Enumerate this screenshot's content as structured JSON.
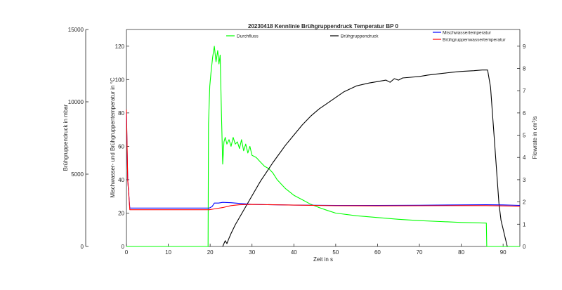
{
  "chart_data": {
    "type": "line",
    "title": "20230418 Kennlinie Brühgruppendruck Temperatur BP 0",
    "xlabel": "Zeit in s",
    "x_ticks": [
      0,
      10,
      20,
      30,
      40,
      50,
      60,
      70,
      80,
      90
    ],
    "xlim": [
      0,
      94
    ],
    "axes": {
      "pressure": {
        "label": "Brühgruppendruck in mbar",
        "ticks": [
          0,
          5000,
          10000,
          15000
        ],
        "ylim": [
          0,
          15000
        ]
      },
      "temperature": {
        "label": "Mischwasser- und Brühgruppentemperatur in °C",
        "ticks": [
          0,
          20,
          40,
          60,
          80,
          100,
          120
        ],
        "ylim": [
          0,
          130
        ]
      },
      "flow": {
        "label_main": "Flowrate in cm",
        "label_sup": "3",
        "label_end": "/s",
        "ticks": [
          0,
          1,
          2,
          3,
          4,
          5,
          6,
          7,
          8,
          9
        ],
        "ylim": [
          0,
          9.75
        ]
      }
    },
    "series": [
      {
        "name": "Durchfluss",
        "axis": "flow",
        "color": "#00ff00",
        "x": [
          0,
          19.5,
          19.6,
          19.9,
          20.2,
          20.6,
          21.0,
          21.4,
          21.8,
          22.1,
          22.4,
          22.7,
          23.0,
          23.3,
          23.6,
          24.0,
          24.5,
          25.0,
          25.5,
          26.0,
          26.5,
          27.0,
          27.5,
          28.0,
          28.5,
          29.0,
          29.5,
          30.0,
          31.0,
          32.0,
          33.0,
          34.0,
          35.0,
          36.0,
          37.0,
          38.0,
          40.0,
          42.0,
          44.0,
          46.0,
          48.0,
          50.0,
          55.0,
          60.0,
          65.0,
          70.0,
          75.0,
          80.0,
          86.0,
          86.1,
          94.0
        ],
        "y": [
          0,
          0,
          5.5,
          7.2,
          7.8,
          8.5,
          9.0,
          8.3,
          8.8,
          8.2,
          8.6,
          6.0,
          3.7,
          4.7,
          4.9,
          4.6,
          4.8,
          4.5,
          4.9,
          4.6,
          4.7,
          4.4,
          4.8,
          4.3,
          4.6,
          4.2,
          4.5,
          4.1,
          4.0,
          3.8,
          3.6,
          3.5,
          3.3,
          3.0,
          2.8,
          2.6,
          2.3,
          2.1,
          1.9,
          1.75,
          1.62,
          1.5,
          1.38,
          1.3,
          1.22,
          1.16,
          1.12,
          1.08,
          1.05,
          0,
          0
        ]
      },
      {
        "name": "Brühgruppendruck",
        "axis": "pressure",
        "color": "#000000",
        "x": [
          23.0,
          23.6,
          24.0,
          24.4,
          25.0,
          26.0,
          28.0,
          30.0,
          32.0,
          35.0,
          38.0,
          40.0,
          42.0,
          44.0,
          46.0,
          48.0,
          50.0,
          52.0,
          55.0,
          58.0,
          60.0,
          62.0,
          63.0,
          64.0,
          65.0,
          66.0,
          68.0,
          70.0,
          72.0,
          75.0,
          78.0,
          80.0,
          83.0,
          85.0,
          86.3,
          87.0,
          88.0,
          89.0,
          89.5,
          90.0,
          90.5,
          91.0
        ],
        "y": [
          0,
          400,
          200,
          500,
          900,
          1500,
          2500,
          3500,
          4500,
          5800,
          7000,
          7700,
          8400,
          9000,
          9500,
          9900,
          10300,
          10700,
          11100,
          11300,
          11400,
          11500,
          11350,
          11600,
          11500,
          11650,
          11700,
          11750,
          11850,
          11950,
          12050,
          12100,
          12150,
          12200,
          12200,
          11000,
          7000,
          3000,
          1800,
          1200,
          600,
          0
        ]
      },
      {
        "name": "Mischwassertemperatur",
        "axis": "temperature",
        "color": "#0000ff",
        "x": [
          0,
          0.3,
          0.8,
          5,
          10,
          15,
          19.8,
          20.5,
          21,
          22,
          23,
          25,
          27,
          30,
          40,
          50,
          60,
          70,
          80,
          86,
          90,
          94
        ],
        "y": [
          80,
          40,
          23,
          23,
          23,
          23,
          23,
          24,
          26,
          26,
          26.4,
          26.2,
          25.8,
          25.2,
          24.8,
          24.6,
          24.6,
          24.7,
          24.9,
          25,
          24.9,
          24.6
        ]
      },
      {
        "name": "Brühgruppenwassertemperatur",
        "axis": "temperature",
        "color": "#ff0000",
        "x": [
          0,
          0.3,
          0.8,
          5,
          10,
          15,
          19.8,
          21,
          23,
          25,
          27,
          30,
          40,
          50,
          60,
          70,
          80,
          86,
          90,
          94
        ],
        "y": [
          82,
          40,
          22,
          22,
          22,
          22,
          22,
          22.5,
          23.3,
          24.5,
          25,
          25.2,
          24.8,
          24.4,
          24.3,
          24.4,
          24.5,
          24.5,
          24.3,
          24.1
        ]
      }
    ],
    "grid": false,
    "legend": "top"
  }
}
